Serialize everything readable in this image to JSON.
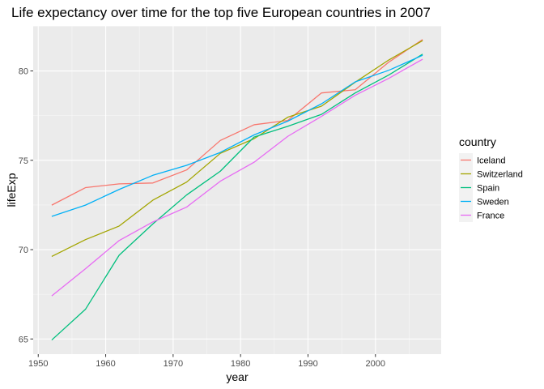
{
  "chart_data": {
    "type": "line",
    "title": "Life expectancy over time for the top five European countries in 2007",
    "xlabel": "year",
    "ylabel": "lifeExp",
    "xlim": [
      1949.25,
      2009.75
    ],
    "ylim": [
      64.15,
      82.52
    ],
    "x_ticks": [
      1950,
      1960,
      1970,
      1980,
      1990,
      2000
    ],
    "y_ticks": [
      65,
      70,
      75,
      80
    ],
    "x_tick_labels": [
      "1950",
      "1960",
      "1970",
      "1980",
      "1990",
      "2000"
    ],
    "y_tick_labels": [
      "65",
      "70",
      "75",
      "80"
    ],
    "grid": true,
    "legend_title": "country",
    "legend_position": "right",
    "x": [
      1952,
      1957,
      1962,
      1967,
      1972,
      1977,
      1982,
      1987,
      1992,
      1997,
      2002,
      2007
    ],
    "series": [
      {
        "name": "Iceland",
        "color": "#F8766D",
        "values": [
          72.49,
          73.47,
          73.68,
          73.73,
          74.46,
          76.11,
          76.99,
          77.23,
          78.77,
          78.95,
          80.5,
          81.76
        ]
      },
      {
        "name": "Switzerland",
        "color": "#A3A500",
        "values": [
          69.62,
          70.56,
          71.32,
          72.77,
          73.78,
          75.39,
          76.21,
          77.41,
          78.03,
          79.37,
          80.62,
          81.7
        ]
      },
      {
        "name": "Spain",
        "color": "#00BF7D",
        "values": [
          64.94,
          66.66,
          69.69,
          71.44,
          73.06,
          74.39,
          76.3,
          76.9,
          77.57,
          78.77,
          79.78,
          80.94
        ]
      },
      {
        "name": "Sweden",
        "color": "#00B0F6",
        "values": [
          71.86,
          72.49,
          73.37,
          74.16,
          74.72,
          75.44,
          76.42,
          77.19,
          78.16,
          79.39,
          80.04,
          80.88
        ]
      },
      {
        "name": "France",
        "color": "#E76BF3",
        "values": [
          67.41,
          68.93,
          70.51,
          71.55,
          72.38,
          73.83,
          74.89,
          76.34,
          77.46,
          78.64,
          79.59,
          80.66
        ]
      }
    ]
  }
}
